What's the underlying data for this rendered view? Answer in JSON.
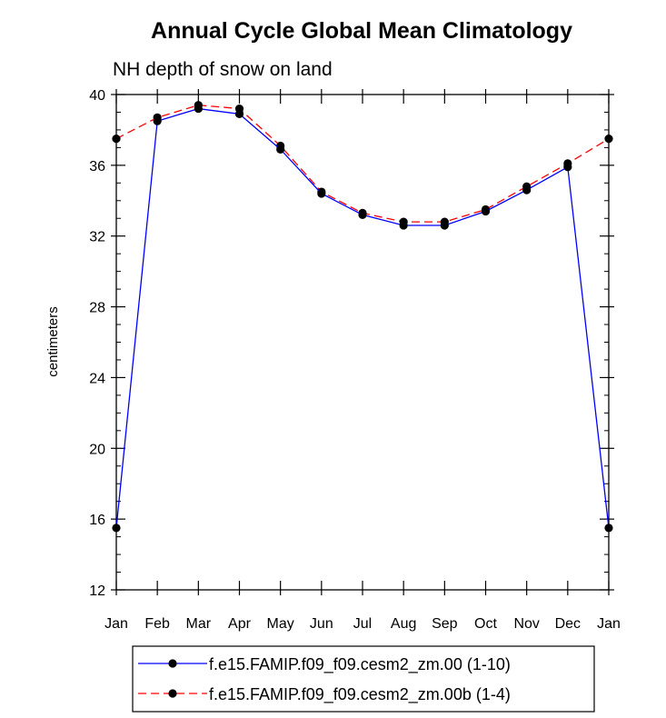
{
  "chart_data": {
    "type": "line",
    "title": "Annual Cycle Global Mean Climatology",
    "subtitle": "NH depth of snow on land",
    "xlabel": "",
    "ylabel": "centimeters",
    "categories": [
      "Jan",
      "Feb",
      "Mar",
      "Apr",
      "May",
      "Jun",
      "Jul",
      "Aug",
      "Sep",
      "Oct",
      "Nov",
      "Dec",
      "Jan"
    ],
    "yticks": [
      12,
      16,
      20,
      24,
      28,
      32,
      36,
      40
    ],
    "ylim": [
      12,
      40
    ],
    "grid": false,
    "legend_position": "bottom",
    "series": [
      {
        "name": "f.e15.FAMIP.f09_f09.cesm2_zm.00 (1-10)",
        "color": "#0000ff",
        "dash": "solid",
        "values": [
          15.5,
          38.5,
          39.2,
          38.9,
          36.9,
          34.4,
          33.2,
          32.6,
          32.6,
          33.4,
          34.6,
          35.9,
          15.5
        ]
      },
      {
        "name": "f.e15.FAMIP.f09_f09.cesm2_zm.00b (1-4)",
        "color": "#ff0000",
        "dash": "dashed",
        "values": [
          37.5,
          38.7,
          39.4,
          39.2,
          37.1,
          34.5,
          33.3,
          32.8,
          32.8,
          33.5,
          34.8,
          36.1,
          37.5
        ]
      }
    ]
  }
}
